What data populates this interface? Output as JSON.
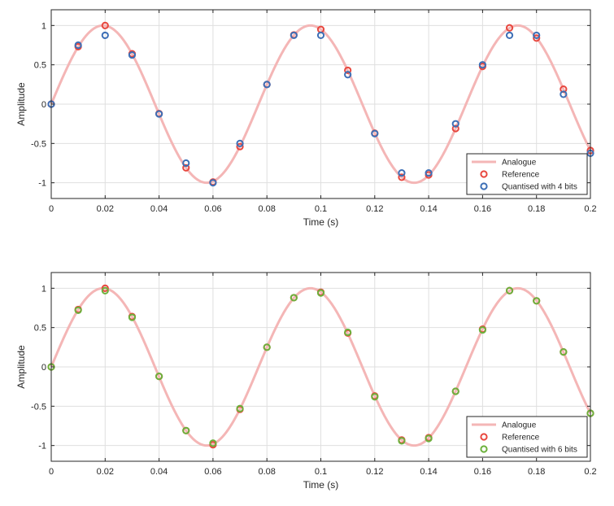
{
  "colors": {
    "analogue": "#f4b6b6",
    "reference": "#e8473e",
    "quantised_4": "#3d6fb6",
    "quantised_6": "#6cb13c",
    "grid": "#dfdfdf",
    "axes": "#262626"
  },
  "chart_data": [
    {
      "type": "line",
      "xlabel": "Time (s)",
      "ylabel": "Amplitude",
      "xlim": [
        0,
        0.2
      ],
      "ylim": [
        -1.2,
        1.2
      ],
      "xticks": [
        0,
        0.02,
        0.04,
        0.06,
        0.08,
        0.1,
        0.12,
        0.14,
        0.16,
        0.18,
        0.2
      ],
      "xtick_labels": [
        "0",
        "0.02",
        "0.04",
        "0.06",
        "0.08",
        "0.1",
        "0.12",
        "0.14",
        "0.16",
        "0.18",
        "0.2"
      ],
      "yticks": [
        1,
        0.5,
        0,
        -0.5,
        -1
      ],
      "ytick_labels": [
        "1",
        "0.5",
        "0",
        "-0.5",
        "-1"
      ],
      "grid": true,
      "legend_position": "bottom-right",
      "analogue": {
        "frequency": 13,
        "amplitude": 1
      },
      "series": [
        {
          "name": "Analogue",
          "style": "line",
          "color_key": "analogue"
        },
        {
          "name": "Reference",
          "style": "marker",
          "color_key": "reference",
          "x": [
            0,
            0.01,
            0.02,
            0.03,
            0.04,
            0.05,
            0.06,
            0.07,
            0.08,
            0.09,
            0.1,
            0.11,
            0.12,
            0.13,
            0.14,
            0.15,
            0.16,
            0.17,
            0.18,
            0.19,
            0.2
          ],
          "y": [
            0,
            0.73,
            1.0,
            0.64,
            -0.12,
            -0.81,
            -0.99,
            -0.54,
            0.25,
            0.88,
            0.95,
            0.43,
            -0.37,
            -0.93,
            -0.9,
            -0.31,
            0.48,
            0.97,
            0.84,
            0.19,
            -0.59
          ]
        },
        {
          "name": "Quantised with 4 bits",
          "style": "marker",
          "color_key": "quantised_4",
          "x": [
            0,
            0.01,
            0.02,
            0.03,
            0.04,
            0.05,
            0.06,
            0.07,
            0.08,
            0.09,
            0.1,
            0.11,
            0.12,
            0.13,
            0.14,
            0.15,
            0.16,
            0.17,
            0.18,
            0.19,
            0.2
          ],
          "y": [
            0,
            0.75,
            0.875,
            0.625,
            -0.125,
            -0.75,
            -1.0,
            -0.5,
            0.25,
            0.875,
            0.875,
            0.375,
            -0.375,
            -0.875,
            -0.875,
            -0.25,
            0.5,
            0.875,
            0.875,
            0.125,
            -0.625
          ]
        }
      ]
    },
    {
      "type": "line",
      "xlabel": "Time (s)",
      "ylabel": "Amplitude",
      "xlim": [
        0,
        0.2
      ],
      "ylim": [
        -1.2,
        1.2
      ],
      "xticks": [
        0,
        0.02,
        0.04,
        0.06,
        0.08,
        0.1,
        0.12,
        0.14,
        0.16,
        0.18,
        0.2
      ],
      "xtick_labels": [
        "0",
        "0.02",
        "0.04",
        "0.06",
        "0.08",
        "0.1",
        "0.12",
        "0.14",
        "0.16",
        "0.18",
        "0.2"
      ],
      "yticks": [
        1,
        0.5,
        0,
        -0.5,
        -1
      ],
      "ytick_labels": [
        "1",
        "0.5",
        "0",
        "-0.5",
        "-1"
      ],
      "grid": true,
      "legend_position": "bottom-right",
      "analogue": {
        "frequency": 13,
        "amplitude": 1
      },
      "series": [
        {
          "name": "Analogue",
          "style": "line",
          "color_key": "analogue"
        },
        {
          "name": "Reference",
          "style": "marker",
          "color_key": "reference",
          "x": [
            0,
            0.01,
            0.02,
            0.03,
            0.04,
            0.05,
            0.06,
            0.07,
            0.08,
            0.09,
            0.1,
            0.11,
            0.12,
            0.13,
            0.14,
            0.15,
            0.16,
            0.17,
            0.18,
            0.19,
            0.2
          ],
          "y": [
            0,
            0.73,
            1.0,
            0.64,
            -0.12,
            -0.81,
            -0.99,
            -0.54,
            0.25,
            0.88,
            0.95,
            0.43,
            -0.37,
            -0.93,
            -0.9,
            -0.31,
            0.48,
            0.97,
            0.84,
            0.19,
            -0.59
          ]
        },
        {
          "name": "Quantised with 6 bits",
          "style": "marker",
          "color_key": "quantised_6",
          "x": [
            0,
            0.01,
            0.02,
            0.03,
            0.04,
            0.05,
            0.06,
            0.07,
            0.08,
            0.09,
            0.1,
            0.11,
            0.12,
            0.13,
            0.14,
            0.15,
            0.16,
            0.17,
            0.18,
            0.19,
            0.2
          ],
          "y": [
            0,
            0.72,
            0.97,
            0.63,
            -0.12,
            -0.81,
            -0.97,
            -0.53,
            0.25,
            0.88,
            0.94,
            0.44,
            -0.38,
            -0.94,
            -0.91,
            -0.31,
            0.47,
            0.97,
            0.84,
            0.19,
            -0.59
          ]
        }
      ]
    }
  ]
}
